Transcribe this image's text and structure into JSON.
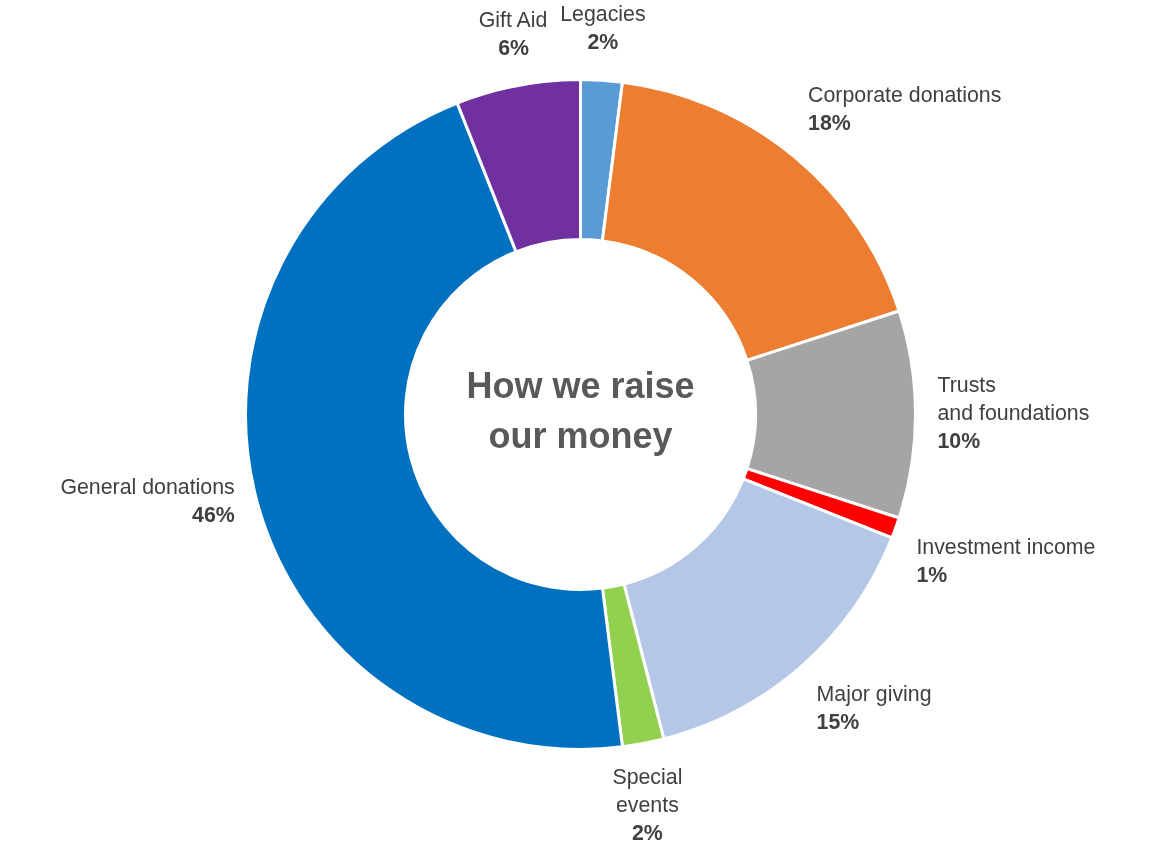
{
  "chart_data": {
    "type": "donut",
    "title": "How we raise\nour money",
    "categories": [
      "Legacies",
      "Corporate donations",
      "Trusts\nand foundations",
      "Investment income",
      "Major giving",
      "Special\nevents",
      "General donations",
      "Gift Aid"
    ],
    "values": [
      2,
      18,
      10,
      1,
      15,
      2,
      46,
      6
    ],
    "colors": [
      "#5b9bd5",
      "#ed7d31",
      "#a5a5a5",
      "#ff0000",
      "#b4c7e7",
      "#92d050",
      "#0070c0",
      "#7030a0"
    ],
    "value_labels": [
      "2%",
      "18%",
      "10%",
      "1%",
      "15%",
      "2%",
      "46%",
      "6%"
    ],
    "legend": false
  }
}
